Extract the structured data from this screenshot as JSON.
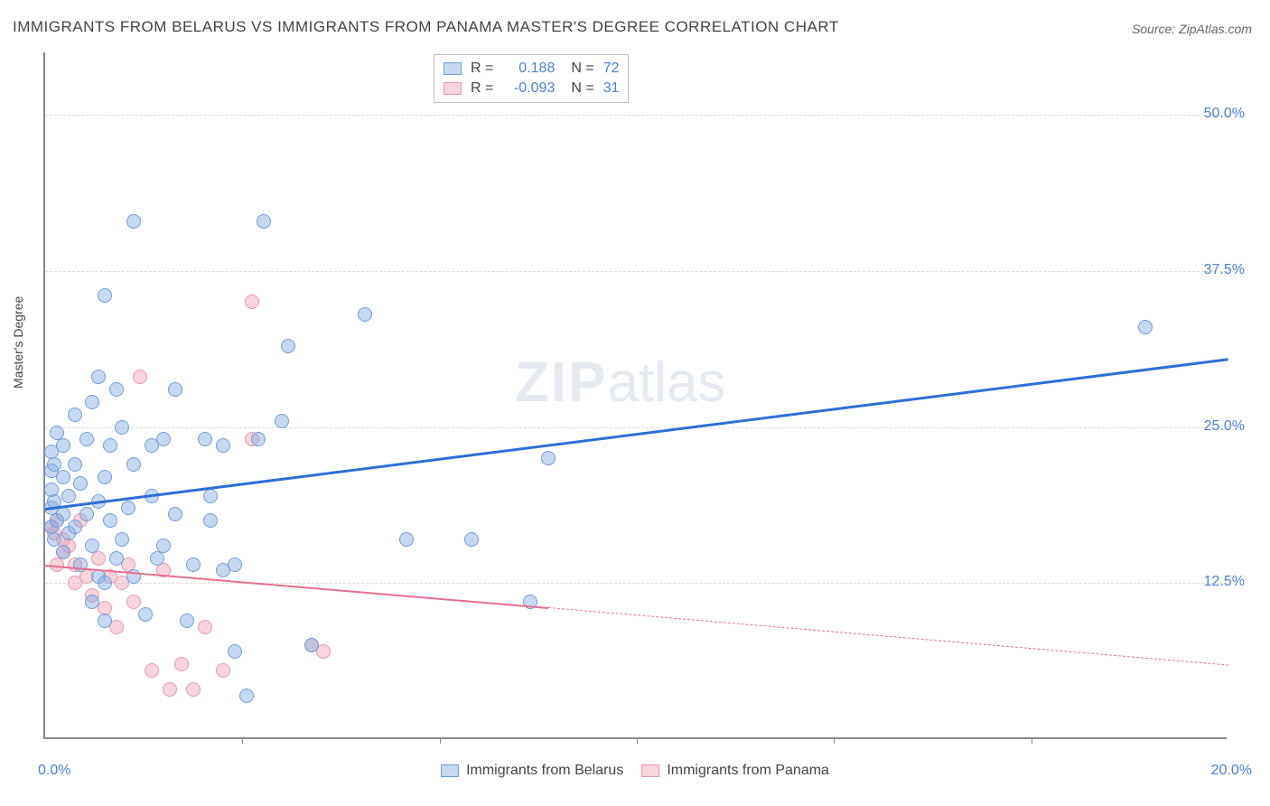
{
  "title": "IMMIGRANTS FROM BELARUS VS IMMIGRANTS FROM PANAMA MASTER'S DEGREE CORRELATION CHART",
  "source": "Source: ZipAtlas.com",
  "watermark": {
    "zip": "ZIP",
    "atlas": "atlas"
  },
  "ylabel": "Master's Degree",
  "axes": {
    "xlim": [
      0,
      20
    ],
    "ylim": [
      0,
      55
    ],
    "yticks": [
      {
        "v": 12.5,
        "label": "12.5%"
      },
      {
        "v": 25.0,
        "label": "25.0%"
      },
      {
        "v": 37.5,
        "label": "37.5%"
      },
      {
        "v": 50.0,
        "label": "50.0%"
      }
    ],
    "xticks_major": [
      0,
      20
    ],
    "xtick_labels": {
      "0": "0.0%",
      "20": "20.0%"
    },
    "xticks_minor": [
      3.33,
      6.67,
      10,
      13.33,
      16.67
    ],
    "grid_color": "#dddddd",
    "axis_color": "#888888"
  },
  "series": {
    "belarus": {
      "label": "Immigrants from Belarus",
      "fill": "rgba(130,170,225,0.45)",
      "stroke": "#6f9fd8",
      "line_color": "#2e6fd6",
      "r": "0.188",
      "n": "72",
      "trend": {
        "x1": 0,
        "y1": 18.5,
        "x2": 20,
        "y2": 30.5,
        "solid_until": 20
      },
      "points": [
        [
          0.1,
          17
        ],
        [
          0.1,
          18.5
        ],
        [
          0.1,
          20
        ],
        [
          0.1,
          21.5
        ],
        [
          0.1,
          23
        ],
        [
          0.15,
          16
        ],
        [
          0.15,
          19
        ],
        [
          0.15,
          22
        ],
        [
          0.2,
          17.5
        ],
        [
          0.2,
          24.5
        ],
        [
          0.3,
          15
        ],
        [
          0.3,
          18
        ],
        [
          0.3,
          21
        ],
        [
          0.3,
          23.5
        ],
        [
          0.4,
          16.5
        ],
        [
          0.4,
          19.5
        ],
        [
          0.5,
          17
        ],
        [
          0.5,
          22
        ],
        [
          0.5,
          26
        ],
        [
          0.6,
          14
        ],
        [
          0.6,
          20.5
        ],
        [
          0.7,
          18
        ],
        [
          0.7,
          24
        ],
        [
          0.8,
          11
        ],
        [
          0.8,
          15.5
        ],
        [
          0.8,
          27
        ],
        [
          0.9,
          13
        ],
        [
          0.9,
          19
        ],
        [
          0.9,
          29
        ],
        [
          1.0,
          9.5
        ],
        [
          1.0,
          12.5
        ],
        [
          1.0,
          21
        ],
        [
          1.0,
          35.5
        ],
        [
          1.1,
          17.5
        ],
        [
          1.1,
          23.5
        ],
        [
          1.2,
          14.5
        ],
        [
          1.2,
          28
        ],
        [
          1.3,
          16
        ],
        [
          1.3,
          25
        ],
        [
          1.4,
          18.5
        ],
        [
          1.5,
          13
        ],
        [
          1.5,
          22
        ],
        [
          1.5,
          41.5
        ],
        [
          1.7,
          10
        ],
        [
          1.8,
          19.5
        ],
        [
          1.8,
          23.5
        ],
        [
          1.9,
          14.5
        ],
        [
          2.0,
          15.5
        ],
        [
          2.0,
          24
        ],
        [
          2.2,
          18
        ],
        [
          2.2,
          28
        ],
        [
          2.4,
          9.5
        ],
        [
          2.5,
          14
        ],
        [
          2.7,
          24
        ],
        [
          2.8,
          17.5
        ],
        [
          2.8,
          19.5
        ],
        [
          3.0,
          13.5
        ],
        [
          3.0,
          23.5
        ],
        [
          3.2,
          7
        ],
        [
          3.2,
          14
        ],
        [
          3.4,
          3.5
        ],
        [
          3.6,
          24
        ],
        [
          3.7,
          41.5
        ],
        [
          4.0,
          25.5
        ],
        [
          4.1,
          31.5
        ],
        [
          4.5,
          7.5
        ],
        [
          5.4,
          34
        ],
        [
          6.1,
          16
        ],
        [
          7.2,
          16
        ],
        [
          8.2,
          11
        ],
        [
          8.5,
          22.5
        ],
        [
          18.6,
          33
        ]
      ]
    },
    "panama": {
      "label": "Immigrants from Panama",
      "fill": "rgba(240,160,180,0.45)",
      "stroke": "#e69ab0",
      "line_color": "#e86f8f",
      "r": "-0.093",
      "n": "31",
      "trend": {
        "x1": 0,
        "y1": 14,
        "x2": 20,
        "y2": 6,
        "solid_until": 8.5
      },
      "points": [
        [
          0.1,
          17
        ],
        [
          0.15,
          16.5
        ],
        [
          0.2,
          14
        ],
        [
          0.2,
          17.5
        ],
        [
          0.3,
          15
        ],
        [
          0.3,
          16
        ],
        [
          0.4,
          15.5
        ],
        [
          0.5,
          12.5
        ],
        [
          0.5,
          14
        ],
        [
          0.6,
          17.5
        ],
        [
          0.7,
          13
        ],
        [
          0.8,
          11.5
        ],
        [
          0.9,
          14.5
        ],
        [
          1.0,
          10.5
        ],
        [
          1.1,
          13
        ],
        [
          1.2,
          9
        ],
        [
          1.3,
          12.5
        ],
        [
          1.4,
          14
        ],
        [
          1.5,
          11
        ],
        [
          1.6,
          29
        ],
        [
          1.8,
          5.5
        ],
        [
          2.0,
          13.5
        ],
        [
          2.1,
          4
        ],
        [
          2.3,
          6
        ],
        [
          2.5,
          4
        ],
        [
          2.7,
          9
        ],
        [
          3.0,
          5.5
        ],
        [
          3.5,
          24
        ],
        [
          3.5,
          35
        ],
        [
          4.5,
          7.5
        ],
        [
          4.7,
          7
        ]
      ]
    }
  },
  "legend_top": {
    "r_label": "R =",
    "n_label": "N ="
  },
  "marker_radius": 8,
  "background": "#ffffff"
}
